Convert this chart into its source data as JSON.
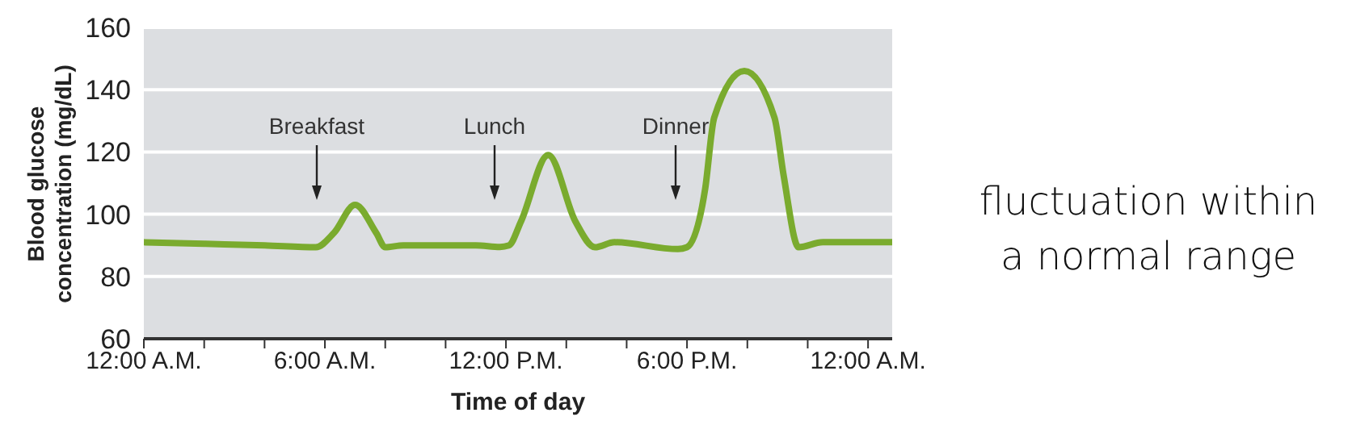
{
  "chart_data": {
    "type": "line",
    "xlabel": "Time of day",
    "ylabel": "Blood glucose concentration (mg/dL)",
    "x": [
      0,
      2,
      4,
      5.7,
      6.3,
      7.0,
      7.7,
      8.0,
      8.6,
      11,
      11.8,
      12.1,
      12.5,
      13.4,
      14.3,
      14.95,
      15.6,
      17.7,
      18.0,
      18.6,
      18.9,
      19.9,
      20.9,
      21.2,
      21.7,
      22.5,
      24.8
    ],
    "series": [
      {
        "color": "#7aab2e",
        "values": [
          91,
          90.5,
          90,
          89.4,
          94,
          103,
          94,
          89.4,
          90,
          90,
          89.5,
          90,
          97.7,
          119,
          97.7,
          89.4,
          91,
          88.8,
          89.4,
          108,
          131,
          146,
          131,
          112.6,
          89.4,
          91,
          91
        ]
      }
    ],
    "xlim": [
      0,
      24.8
    ],
    "ylim": [
      60,
      160
    ],
    "xticks": [
      {
        "value": 0,
        "label": "12:00 A.M."
      },
      {
        "value": 2,
        "label": null
      },
      {
        "value": 4,
        "label": null
      },
      {
        "value": 6,
        "label": "6:00 A.M."
      },
      {
        "value": 8,
        "label": null
      },
      {
        "value": 10,
        "label": null
      },
      {
        "value": 12,
        "label": "12:00 P.M."
      },
      {
        "value": 14,
        "label": null
      },
      {
        "value": 16,
        "label": null
      },
      {
        "value": 18,
        "label": "6:00 P.M."
      },
      {
        "value": 20,
        "label": null
      },
      {
        "value": 22,
        "label": null
      },
      {
        "value": 24,
        "label": "12:00 A.M."
      }
    ],
    "yticks": [
      60,
      80,
      100,
      120,
      140,
      160
    ],
    "grid": "y",
    "marker": "none",
    "line_style": "solid",
    "legend": false,
    "annotations": [
      "Breakfast",
      "Lunch",
      "Dinner",
      "fluctuation within a normal range"
    ]
  }
}
